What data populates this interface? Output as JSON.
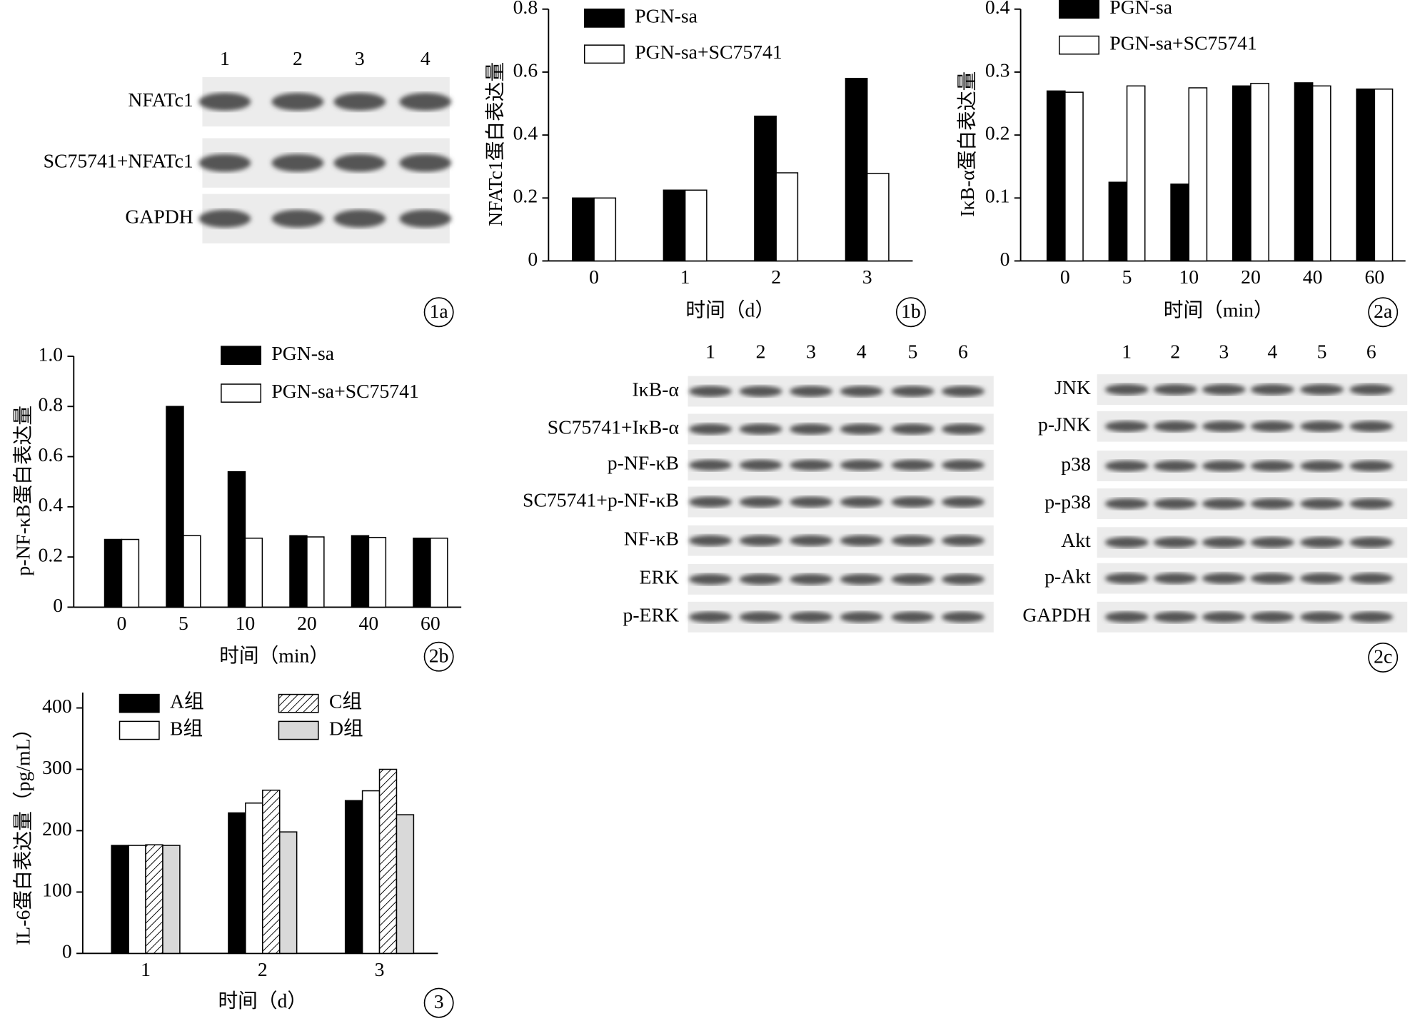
{
  "chart_data": [
    {
      "type": "bar",
      "panel_label": "1b",
      "ylabel": "NFATc1蛋白表达量",
      "xlabel": "时间（d）",
      "categories": [
        "0",
        "1",
        "2",
        "3"
      ],
      "series": [
        {
          "name": "PGN-sa",
          "color": "#000000",
          "values": [
            0.2,
            0.225,
            0.46,
            0.58
          ]
        },
        {
          "name": "PGN-sa+SC75741",
          "color": "#ffffff",
          "values": [
            0.2,
            0.225,
            0.28,
            0.278
          ]
        }
      ],
      "ylim": [
        0,
        0.8
      ],
      "yticks": [
        0,
        0.2,
        0.4,
        0.6,
        0.8
      ]
    },
    {
      "type": "bar",
      "panel_label": "2a",
      "ylabel": "IκB-α蛋白表达量",
      "xlabel": "时间（min）",
      "categories": [
        "0",
        "5",
        "10",
        "20",
        "40",
        "60"
      ],
      "series": [
        {
          "name": "PGN-sa",
          "color": "#000000",
          "values": [
            0.27,
            0.125,
            0.122,
            0.278,
            0.283,
            0.273
          ]
        },
        {
          "name": "PGN-sa+SC75741",
          "color": "#ffffff",
          "values": [
            0.268,
            0.278,
            0.275,
            0.282,
            0.278,
            0.273
          ]
        }
      ],
      "ylim": [
        0,
        0.4
      ],
      "yticks": [
        0,
        0.1,
        0.2,
        0.3,
        0.4
      ]
    },
    {
      "type": "bar",
      "panel_label": "2b",
      "ylabel": "p-NF-κB蛋白表达量",
      "xlabel": "时间（min）",
      "categories": [
        "0",
        "5",
        "10",
        "20",
        "40",
        "60"
      ],
      "series": [
        {
          "name": "PGN-sa",
          "color": "#000000",
          "values": [
            0.27,
            0.8,
            0.54,
            0.285,
            0.285,
            0.275
          ]
        },
        {
          "name": "PGN-sa+SC75741",
          "color": "#ffffff",
          "values": [
            0.27,
            0.285,
            0.275,
            0.28,
            0.278,
            0.275
          ]
        }
      ],
      "ylim": [
        0,
        1
      ],
      "yticks": [
        0,
        0.2,
        0.4,
        0.6,
        0.8,
        {
          "value": 1,
          "label": "1.0"
        }
      ]
    },
    {
      "type": "bar",
      "panel_label": "3",
      "ylabel": "IL-6蛋白表达量（pg/mL）",
      "xlabel": "时间（d）",
      "categories": [
        "1",
        "2",
        "3"
      ],
      "series": [
        {
          "name": "A组",
          "color": "#000000",
          "values": [
            176,
            229,
            249
          ]
        },
        {
          "name": "B组",
          "color": "#ffffff",
          "values": [
            176,
            245,
            265
          ]
        },
        {
          "name": "C组",
          "color": "#ffffff",
          "pattern": "hatch",
          "values": [
            177,
            266,
            300
          ]
        },
        {
          "name": "D组",
          "color": "#d9d9d9",
          "values": [
            176,
            198,
            226
          ]
        }
      ],
      "ylim": [
        0,
        425
      ],
      "yticks": [
        0,
        100,
        200,
        300,
        400
      ]
    }
  ],
  "blots": [
    {
      "panel_label": "1a",
      "lanes": [
        "1",
        "2",
        "3",
        "4"
      ],
      "rows": [
        "NFATc1",
        "SC75741+NFATc1",
        "GAPDH"
      ]
    },
    {
      "lanes": [
        "1",
        "2",
        "3",
        "4",
        "5",
        "6"
      ],
      "rows": [
        "IκB-α",
        "SC75741+IκB-α",
        "p-NF-κB",
        "SC75741+p-NF-κB",
        "NF-κB",
        "ERK",
        "p-ERK"
      ]
    },
    {
      "panel_label": "2c",
      "lanes": [
        "1",
        "2",
        "3",
        "4",
        "5",
        "6"
      ],
      "rows": [
        "JNK",
        "p-JNK",
        "p38",
        "p-p38",
        "Akt",
        "p-Akt",
        "GAPDH"
      ]
    }
  ]
}
